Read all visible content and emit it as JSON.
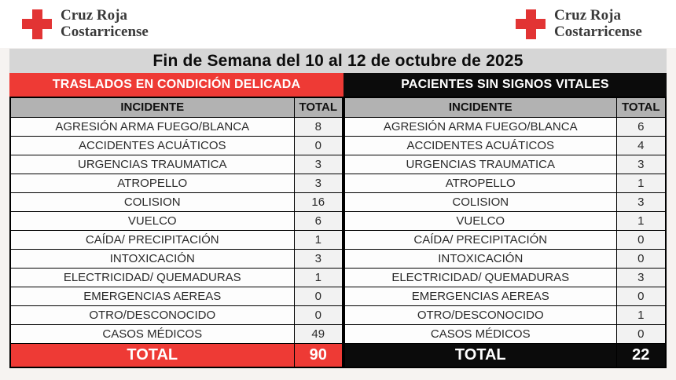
{
  "page": {
    "title": "Fin de Semana del 10 al 12 de octubre de 2025"
  },
  "logo": {
    "line1": "Cruz Roja",
    "line2": "Costarricense"
  },
  "colors": {
    "red": "#EE3A35",
    "black": "#0B0B0B",
    "title_bg": "#D6D6D6",
    "column_header_bg": "#B2B2B2",
    "total_cell_bg": "#F2F2F2",
    "logo_red": "#E23434",
    "logo_text": "#3A3A3A",
    "page_bg": "#F6F3F1"
  },
  "columns": {
    "incident": "INCIDENTE",
    "total": "TOTAL"
  },
  "tables": {
    "left": {
      "header": "TRASLADOS EN CONDICIÓN DELICADA",
      "rows": [
        {
          "label": "AGRESIÓN ARMA FUEGO/BLANCA",
          "value": 8
        },
        {
          "label": "ACCIDENTES ACUÁTICOS",
          "value": 0
        },
        {
          "label": "URGENCIAS TRAUMATICA",
          "value": 3
        },
        {
          "label": "ATROPELLO",
          "value": 3
        },
        {
          "label": "COLISION",
          "value": 16
        },
        {
          "label": "VUELCO",
          "value": 6
        },
        {
          "label": "CAÍDA/ PRECIPITACIÓN",
          "value": 1
        },
        {
          "label": "INTOXICACIÓN",
          "value": 3
        },
        {
          "label": "ELECTRICIDAD/ QUEMADURAS",
          "value": 1
        },
        {
          "label": "EMERGENCIAS AEREAS",
          "value": 0
        },
        {
          "label": "OTRO/DESCONOCIDO",
          "value": 0
        },
        {
          "label": "CASOS MÉDICOS",
          "value": 49
        }
      ],
      "total_label": "TOTAL",
      "total_value": 90
    },
    "right": {
      "header": "PACIENTES SIN SIGNOS VITALES",
      "rows": [
        {
          "label": "AGRESIÓN ARMA FUEGO/BLANCA",
          "value": 6
        },
        {
          "label": "ACCIDENTES ACUÁTICOS",
          "value": 4
        },
        {
          "label": "URGENCIAS TRAUMATICA",
          "value": 3
        },
        {
          "label": "ATROPELLO",
          "value": 1
        },
        {
          "label": "COLISION",
          "value": 3
        },
        {
          "label": "VUELCO",
          "value": 1
        },
        {
          "label": "CAÍDA/ PRECIPITACIÓN",
          "value": 0
        },
        {
          "label": "INTOXICACIÓN",
          "value": 0
        },
        {
          "label": "ELECTRICIDAD/ QUEMADURAS",
          "value": 3
        },
        {
          "label": "EMERGENCIAS AEREAS",
          "value": 0
        },
        {
          "label": "OTRO/DESCONOCIDO",
          "value": 1
        },
        {
          "label": "CASOS MÉDICOS",
          "value": 0
        }
      ],
      "total_label": "TOTAL",
      "total_value": 22
    }
  }
}
